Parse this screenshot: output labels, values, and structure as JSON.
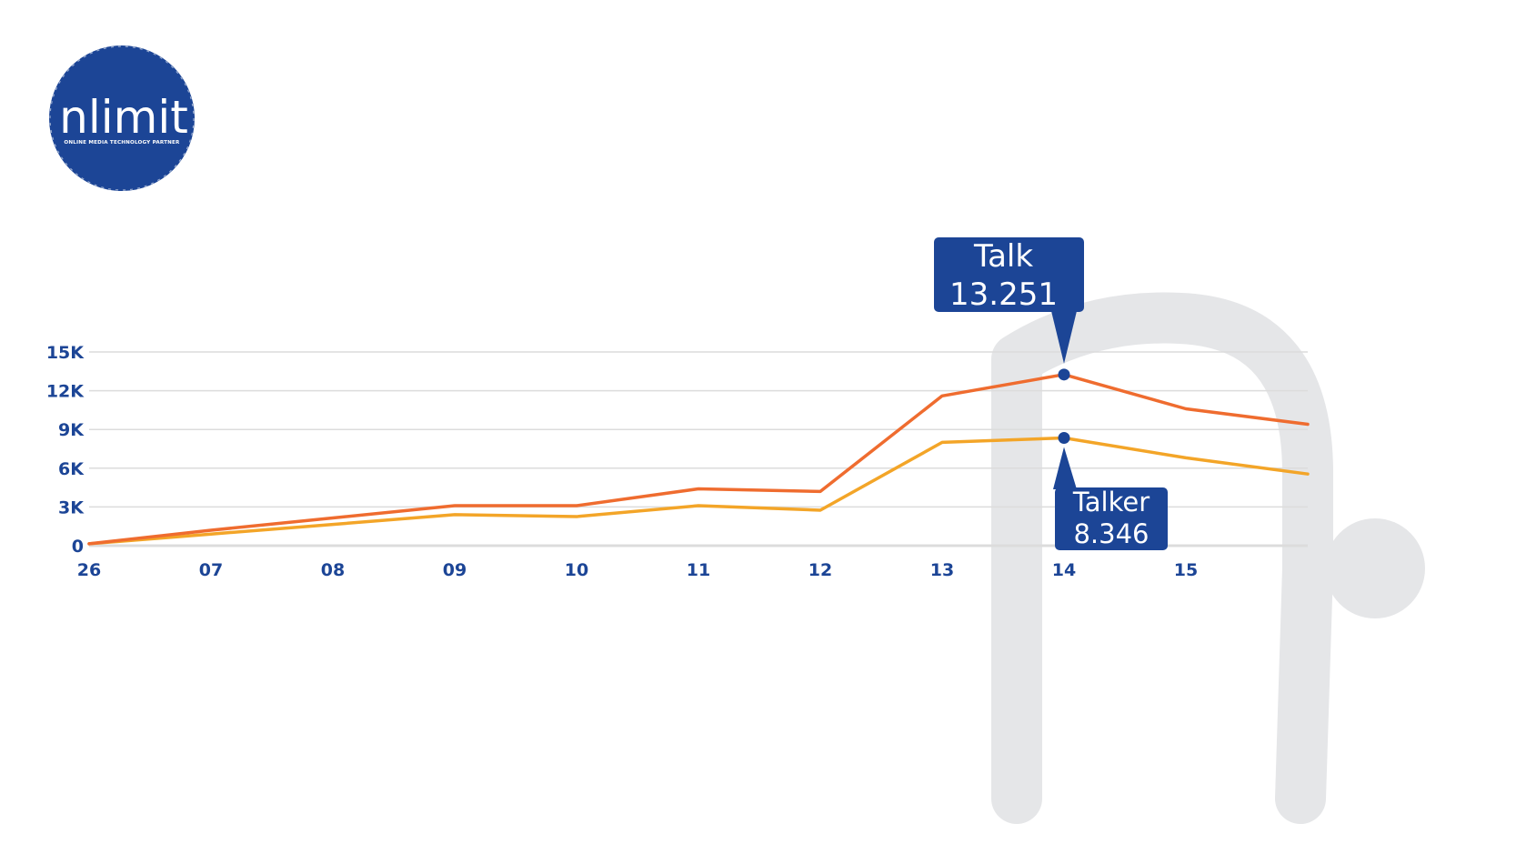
{
  "brand": {
    "logo_text": "nlimit",
    "tagline": "ONLINE MEDIA TECHNOLOGY PARTNER",
    "color": "#1c4596",
    "watermark_color": "#e5e6e8"
  },
  "chart_data": {
    "type": "line",
    "title": "",
    "xlabel": "",
    "ylabel": "",
    "categories": [
      "26",
      "07",
      "08",
      "09",
      "10",
      "11",
      "12",
      "13",
      "14",
      "15",
      ""
    ],
    "ylim": [
      0,
      15000
    ],
    "yticks": [
      {
        "value": 0,
        "label": "0"
      },
      {
        "value": 3000,
        "label": "3K"
      },
      {
        "value": 6000,
        "label": "6K"
      },
      {
        "value": 9000,
        "label": "9K"
      },
      {
        "value": 12000,
        "label": "12K"
      },
      {
        "value": 15000,
        "label": "15K"
      }
    ],
    "grid": true,
    "legend": "none",
    "series": [
      {
        "key": "talk",
        "color": "#ef6c2f",
        "values": [
          150,
          1200,
          2150,
          3100,
          3100,
          4400,
          4200,
          11600,
          13251,
          10600,
          9400
        ]
      },
      {
        "key": "talker",
        "color": "#f3a528",
        "values": [
          150,
          900,
          1650,
          2400,
          2250,
          3100,
          2750,
          8000,
          8346,
          6800,
          5550
        ]
      }
    ],
    "callouts": [
      {
        "series": "talk",
        "category": "14",
        "name": "Talk",
        "value_label": "13.251",
        "value": 13251,
        "placement": "above"
      },
      {
        "series": "talker",
        "category": "14",
        "name": "Talker",
        "value_label": "8.346",
        "value": 8346,
        "placement": "below"
      }
    ],
    "marker_color": "#1c4596",
    "grid_color": "#dcdcdc"
  }
}
